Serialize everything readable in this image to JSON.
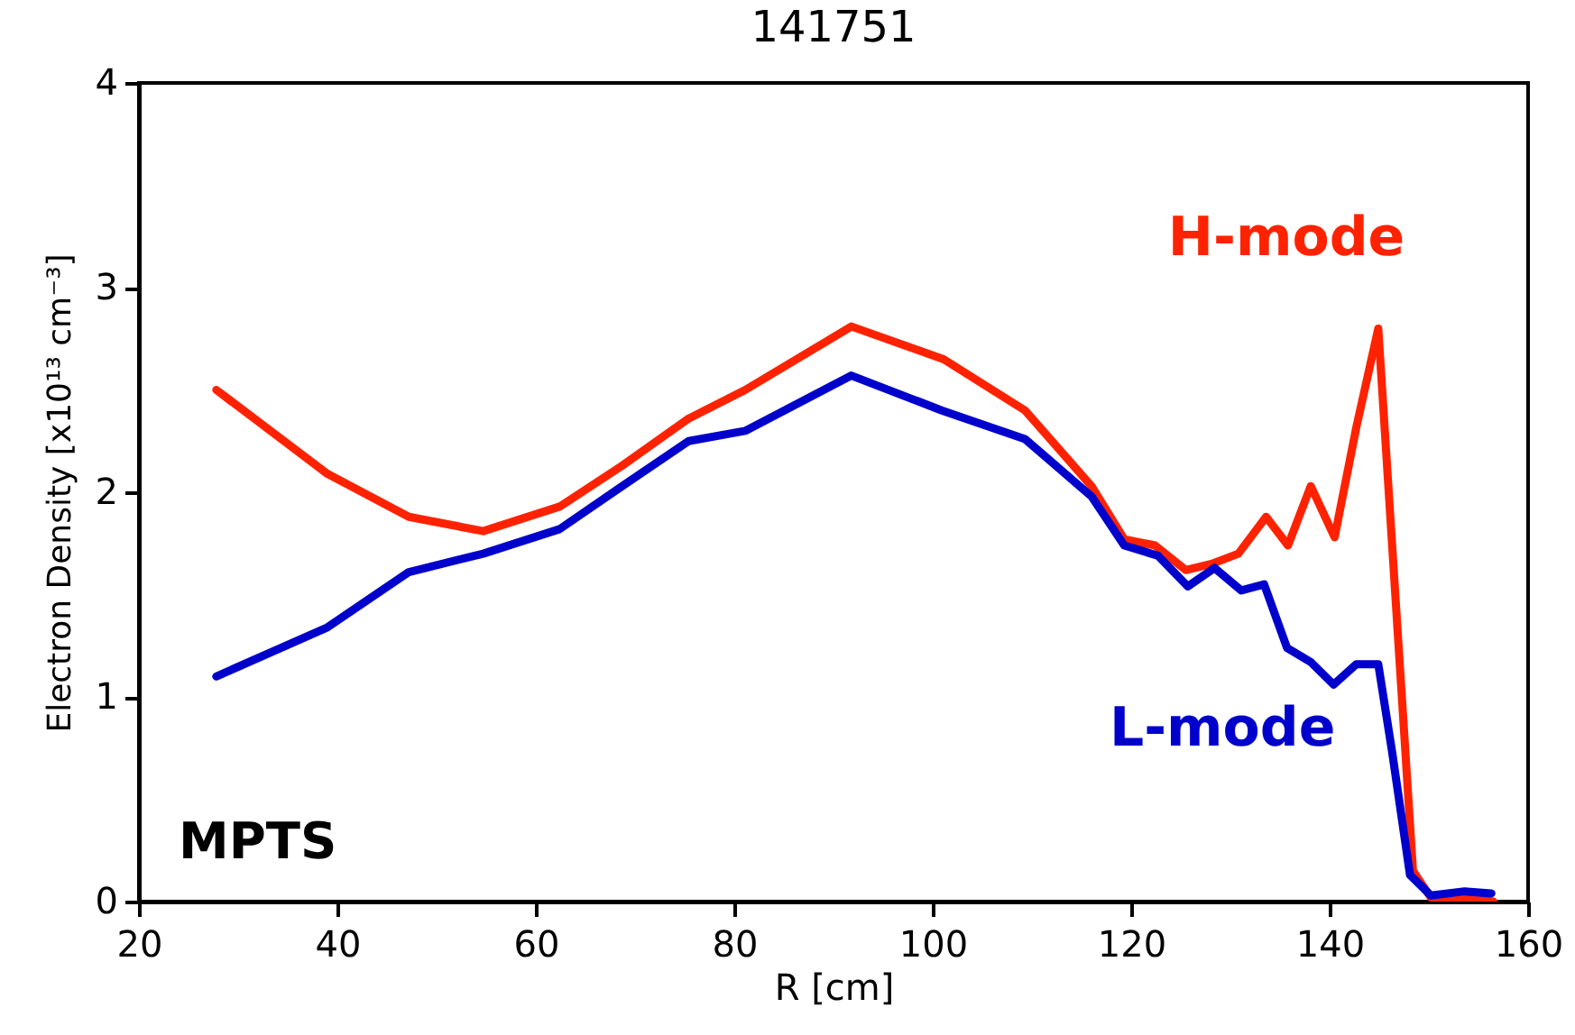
{
  "chart_data": {
    "type": "line",
    "title": "141751",
    "xlabel": "R [cm]",
    "ylabel": "Electron Density [x10¹³ cm⁻³]",
    "xlim": [
      20,
      160
    ],
    "xticks": [
      20,
      40,
      60,
      80,
      100,
      120,
      140,
      160
    ],
    "ylim": [
      0,
      4
    ],
    "yticks": [
      0,
      1,
      2,
      3,
      4
    ],
    "grid": false,
    "legend": false,
    "line_style": "solid",
    "marker": "none",
    "annotations": [
      "MPTS"
    ],
    "series": [
      {
        "name": "H-mode",
        "color": "#ff2200",
        "x": [
          27.8,
          39,
          47.2,
          54.7,
          62.4,
          68.7,
          75.4,
          81.1,
          91.8,
          101.1,
          109.3,
          116,
          119.3,
          122.4,
          125.5,
          128.1,
          130.8,
          133.6,
          135.8,
          138.1,
          140.5,
          142.7,
          144.9,
          148.4,
          150.2,
          153.3,
          156.5
        ],
        "values": [
          2.5,
          2.09,
          1.88,
          1.81,
          1.93,
          2.13,
          2.36,
          2.5,
          2.81,
          2.65,
          2.4,
          2.03,
          1.77,
          1.74,
          1.62,
          1.65,
          1.7,
          1.88,
          1.74,
          2.03,
          1.78,
          2.32,
          2.8,
          0.15,
          0.02,
          0.02,
          0
        ]
      },
      {
        "name": "L-mode",
        "color": "#0000cc",
        "x": [
          27.8,
          39,
          47.2,
          54.7,
          62.4,
          68.7,
          75.4,
          81.1,
          91.8,
          100.9,
          109.3,
          116,
          119.3,
          122.7,
          125.7,
          128.4,
          131.1,
          133.4,
          135.7,
          138.1,
          140.4,
          142.7,
          144.9,
          146.3,
          148.1,
          150.2,
          153.6,
          156.3
        ],
        "values": [
          1.1,
          1.34,
          1.61,
          1.7,
          1.82,
          2.03,
          2.25,
          2.3,
          2.57,
          2.4,
          2.26,
          1.98,
          1.74,
          1.69,
          1.54,
          1.63,
          1.52,
          1.55,
          1.24,
          1.17,
          1.06,
          1.16,
          1.16,
          0.73,
          0.13,
          0.03,
          0.05,
          0.04
        ]
      }
    ]
  }
}
